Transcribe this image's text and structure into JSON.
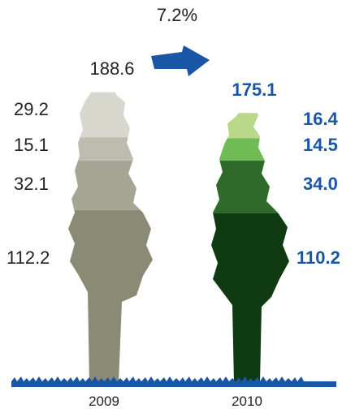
{
  "chart_data": {
    "type": "stacked-pictogram",
    "change_label": "7.2%",
    "series": [
      {
        "year": "2009",
        "total": 188.6,
        "total_label": "188.6",
        "segments": [
          {
            "value": 112.2,
            "label": "112.2",
            "color": "#8b8a74"
          },
          {
            "value": 32.1,
            "label": "32.1",
            "color": "#a6a493"
          },
          {
            "value": 15.1,
            "label": "15.1",
            "color": "#bebcaf"
          },
          {
            "value": 29.2,
            "label": "29.2",
            "color": "#d8d7ce"
          }
        ]
      },
      {
        "year": "2010",
        "total": 175.1,
        "total_label": "175.1",
        "segments": [
          {
            "value": 110.2,
            "label": "110.2",
            "color": "#0f3a12"
          },
          {
            "value": 34.0,
            "label": "34.0",
            "color": "#2f6a2a"
          },
          {
            "value": 14.5,
            "label": "14.5",
            "color": "#6fbb54"
          },
          {
            "value": 16.4,
            "label": "16.4",
            "color": "#b9d88a"
          }
        ]
      }
    ],
    "colors": {
      "label_2010": "#1a56a6",
      "arrow": "#1a56a6",
      "ground": "#1a56a6"
    }
  }
}
